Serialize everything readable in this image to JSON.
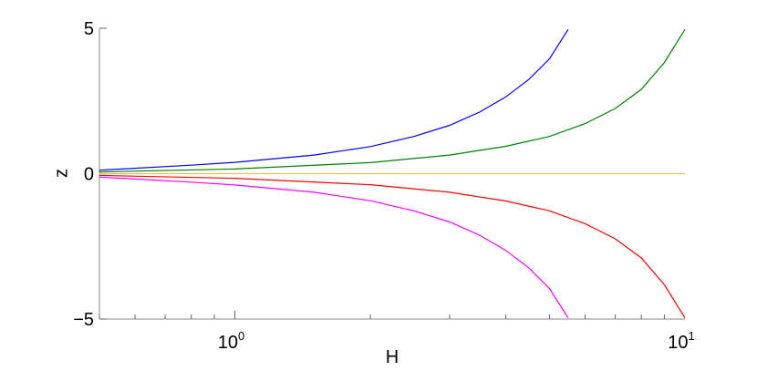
{
  "chart_data": {
    "type": "line",
    "xlabel": "H",
    "ylabel": "z",
    "x_scale": "log",
    "xlim": [
      0.5,
      10
    ],
    "ylim": [
      -5,
      5
    ],
    "x_ticks": [
      {
        "value": 1,
        "base": "10",
        "exp": "0"
      },
      {
        "value": 10,
        "base": "10",
        "exp": "1"
      }
    ],
    "y_ticks": [
      {
        "value": 5,
        "label": "5"
      },
      {
        "value": 0,
        "label": "0"
      },
      {
        "value": -5,
        "label": "−5"
      }
    ],
    "grid": false,
    "legend": "none",
    "series": [
      {
        "color": "#0000ff",
        "x": [
          0.5,
          0.8,
          1.0,
          1.5,
          2.0,
          2.5,
          3.0,
          3.5,
          4.0,
          4.5,
          5.0,
          5.5
        ],
        "y": [
          0.12,
          0.29,
          0.39,
          0.64,
          0.93,
          1.28,
          1.66,
          2.12,
          2.64,
          3.24,
          3.95,
          4.96
        ]
      },
      {
        "color": "#008000",
        "x": [
          0.5,
          1.0,
          2.0,
          3.0,
          4.0,
          5.0,
          6.0,
          7.0,
          8.0,
          9.0,
          10.0
        ],
        "y": [
          0.06,
          0.16,
          0.38,
          0.64,
          0.94,
          1.28,
          1.72,
          2.24,
          2.9,
          3.82,
          4.96
        ]
      },
      {
        "color": "#e8c060",
        "x": [
          0.5,
          10.0
        ],
        "y": [
          0.0,
          0.0
        ]
      },
      {
        "color": "#ff0000",
        "x": [
          0.5,
          1.0,
          2.0,
          3.0,
          4.0,
          5.0,
          6.0,
          7.0,
          8.0,
          9.0,
          10.0
        ],
        "y": [
          -0.06,
          -0.16,
          -0.38,
          -0.64,
          -0.94,
          -1.28,
          -1.72,
          -2.24,
          -2.9,
          -3.82,
          -4.96
        ]
      },
      {
        "color": "#ff00ff",
        "x": [
          0.5,
          0.8,
          1.0,
          1.5,
          2.0,
          2.5,
          3.0,
          3.5,
          4.0,
          4.5,
          5.0,
          5.5
        ],
        "y": [
          -0.12,
          -0.29,
          -0.39,
          -0.64,
          -0.93,
          -1.28,
          -1.66,
          -2.12,
          -2.64,
          -3.24,
          -3.95,
          -4.96
        ]
      }
    ]
  }
}
